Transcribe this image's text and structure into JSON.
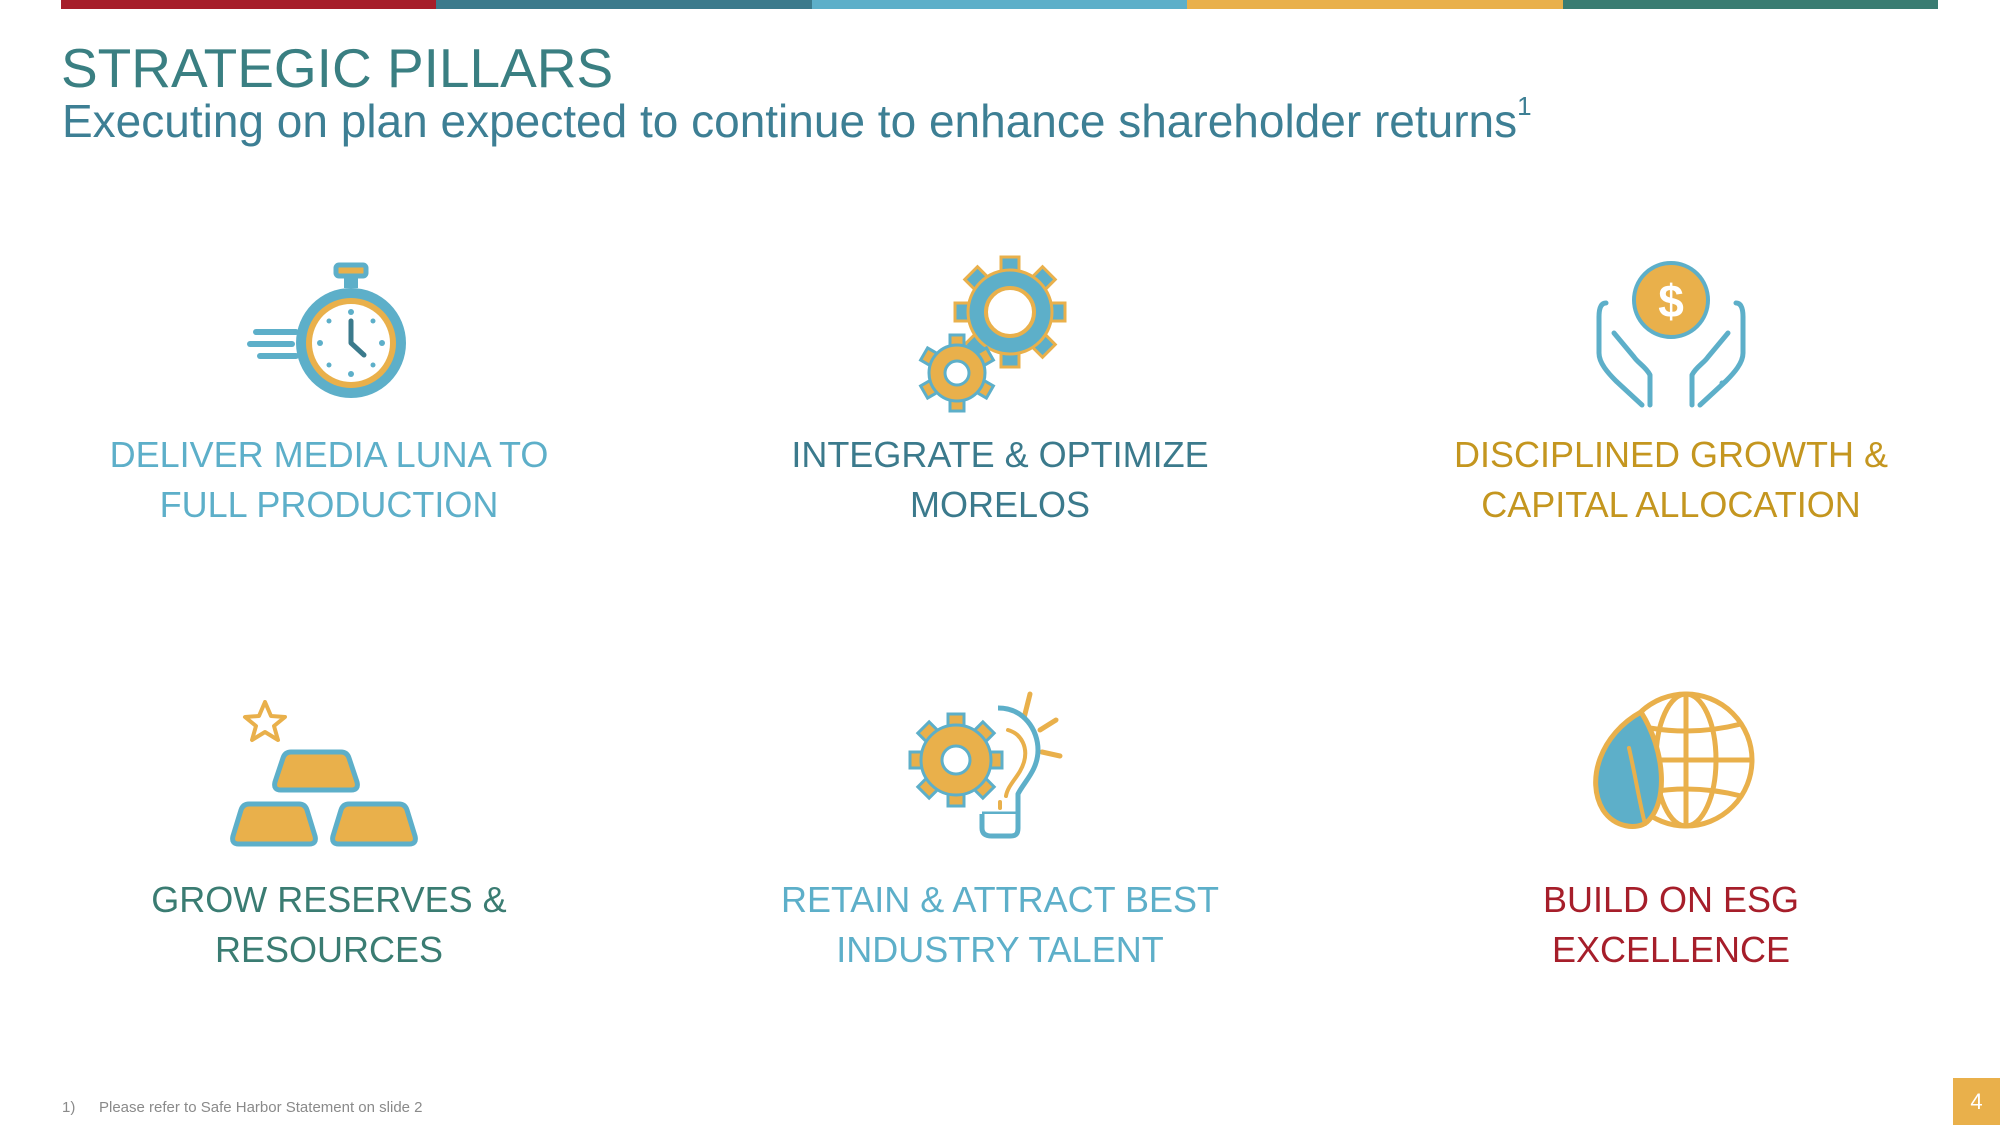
{
  "colors": {
    "red": "#a61e2a",
    "teal_dark": "#3b7a8c",
    "light_blue": "#5dafc9",
    "gold": "#e9b04b",
    "teal_green": "#3a7c72",
    "gold_text": "#c4961f"
  },
  "header": {
    "title": "STRATEGIC PILLARS",
    "subtitle": "Executing on plan expected to continue to enhance shareholder returns",
    "subtitle_sup": "1"
  },
  "pillars": [
    {
      "icon": "stopwatch-icon",
      "label": "DELIVER MEDIA LUNA TO\nFULL PRODUCTION",
      "color": "#5dafc9"
    },
    {
      "icon": "gears-icon",
      "label": "INTEGRATE & OPTIMIZE\nMORELOS",
      "color": "#3b7a8c"
    },
    {
      "icon": "hands-coin-icon",
      "label": "DISCIPLINED GROWTH &\nCAPITAL ALLOCATION",
      "color": "#c4961f"
    },
    {
      "icon": "gold-bars-icon",
      "label": "GROW RESERVES &\nRESOURCES",
      "color": "#3a7c72"
    },
    {
      "icon": "lightbulb-gear-icon",
      "label": "RETAIN & ATTRACT BEST\nINDUSTRY TALENT",
      "color": "#5dafc9"
    },
    {
      "icon": "leaf-globe-icon",
      "label": "BUILD ON ESG\nEXCELLENCE",
      "color": "#a61e2a"
    }
  ],
  "footnote": {
    "number": "1)",
    "text": "Please refer to Safe Harbor Statement on slide 2"
  },
  "page_number": "4"
}
